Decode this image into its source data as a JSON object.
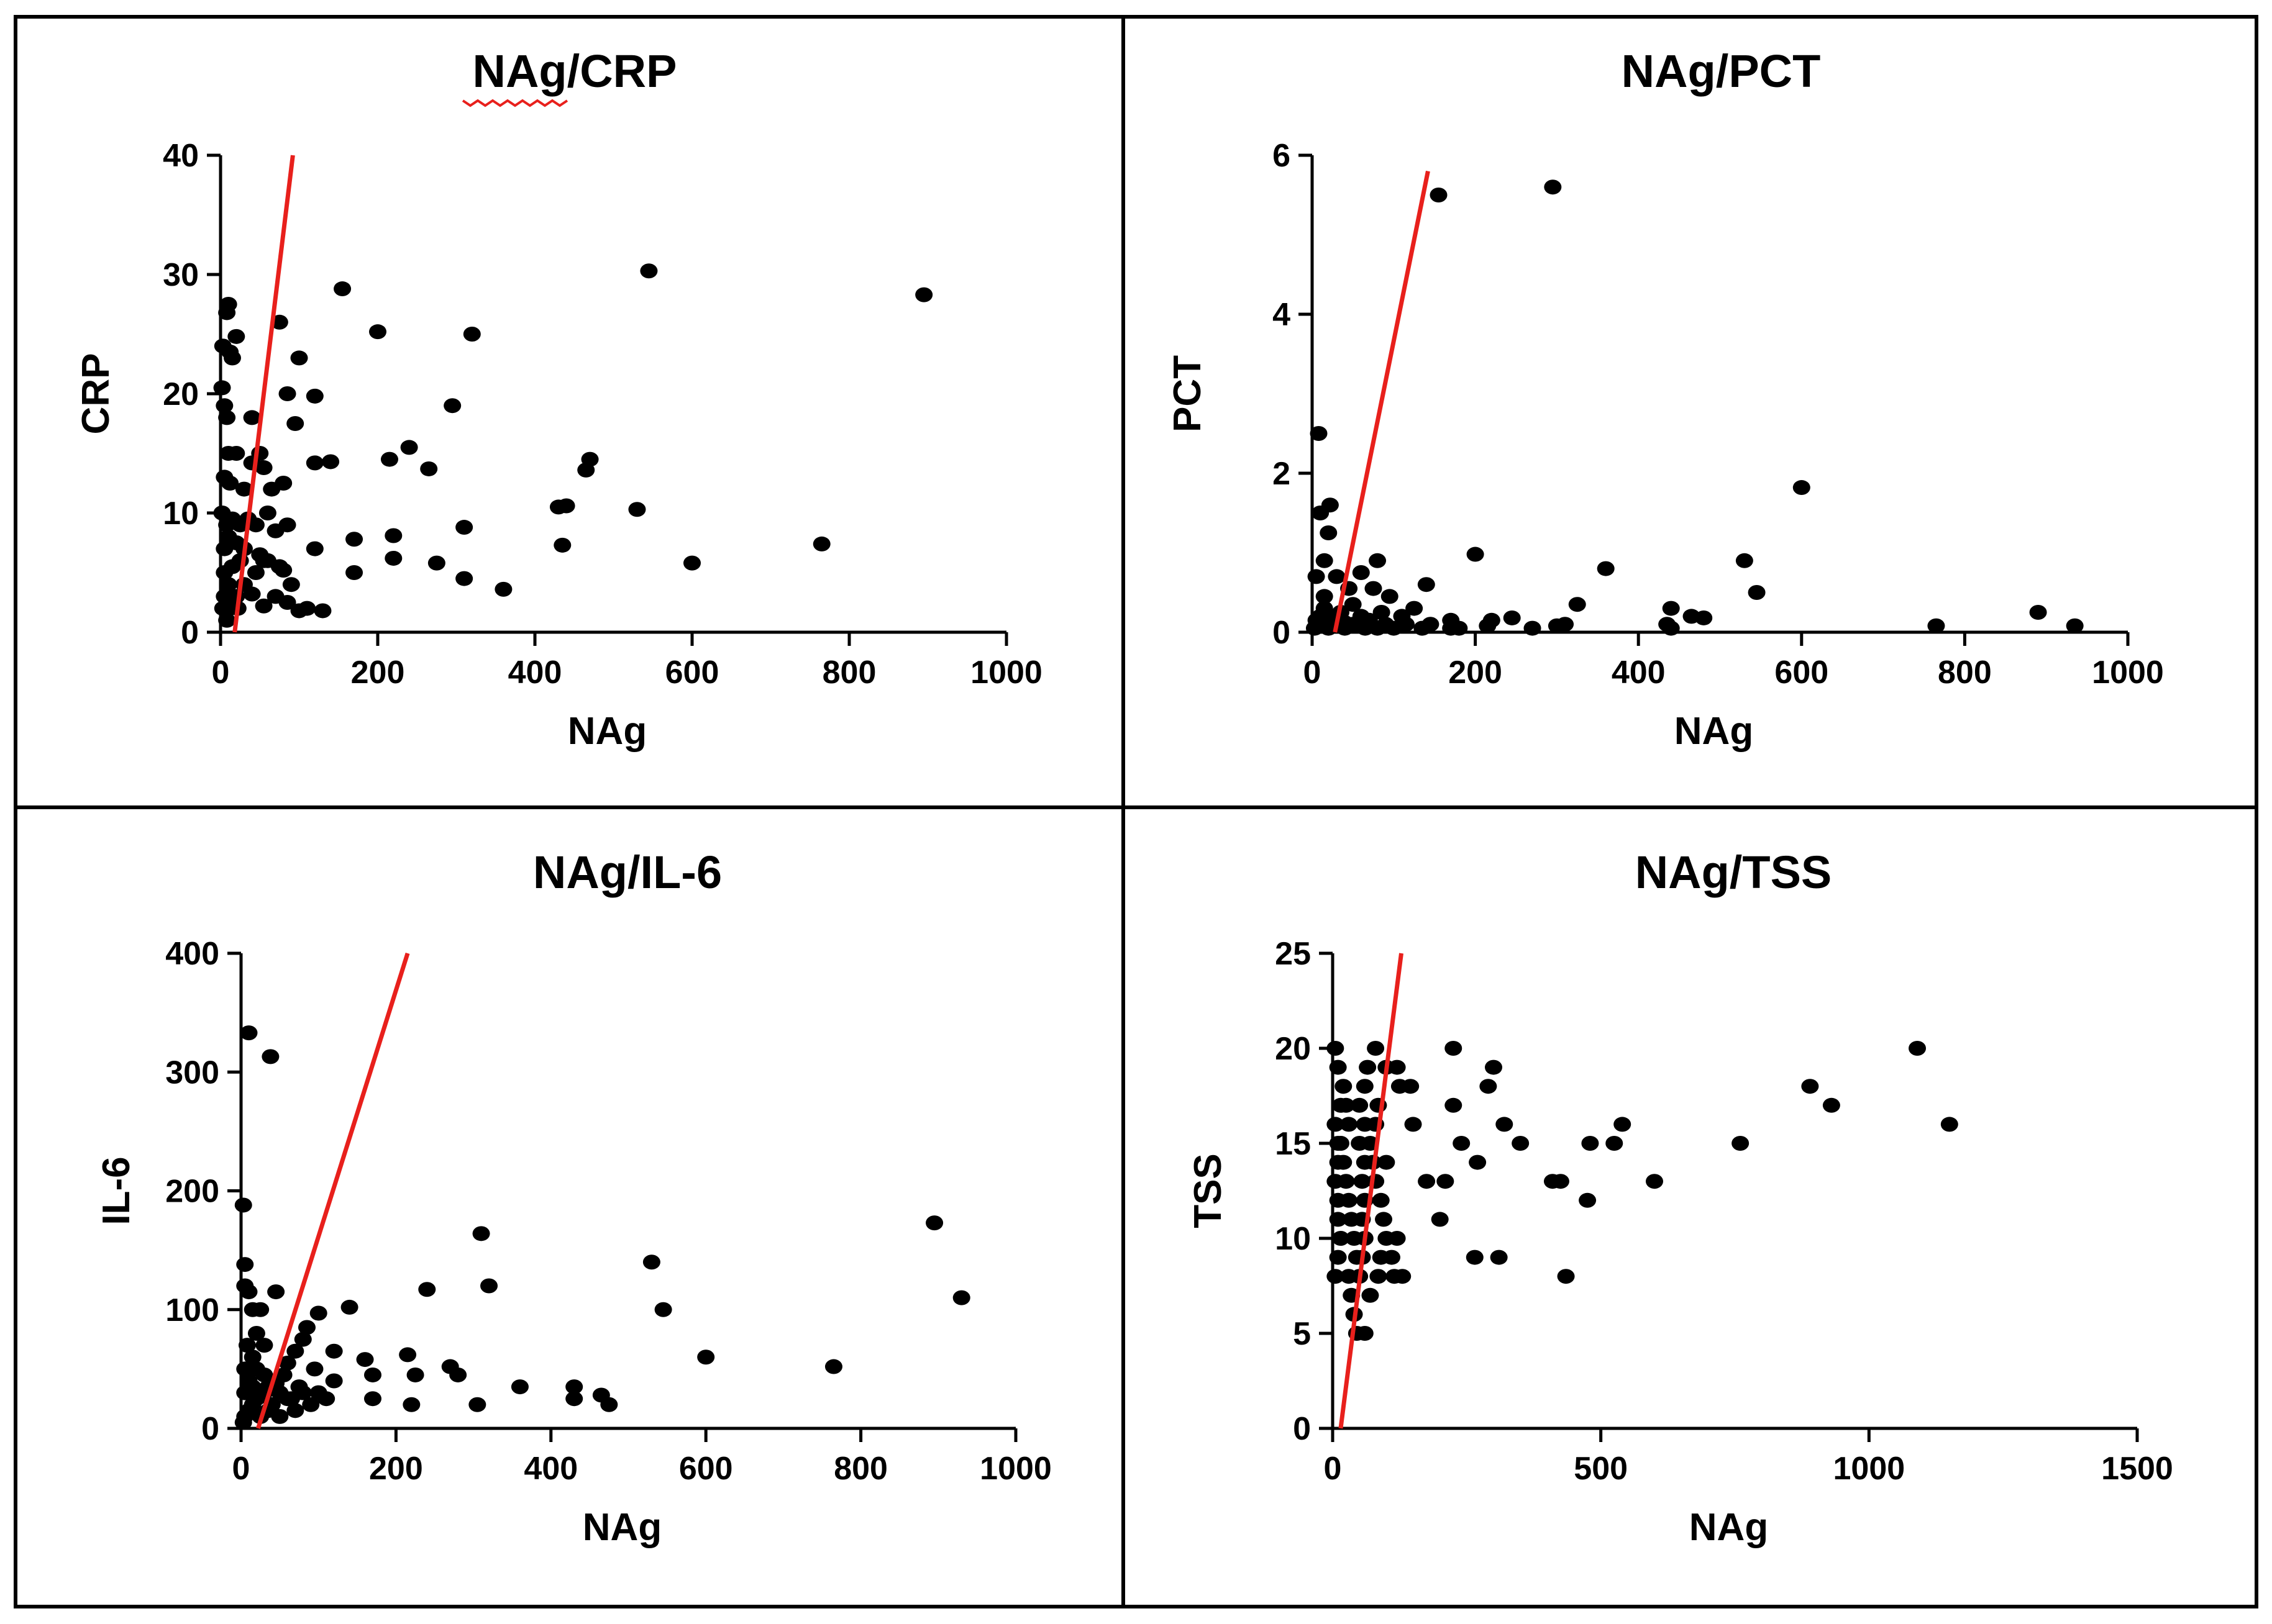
{
  "figure": {
    "panels": [
      {
        "id": "crp",
        "title": "NAg/CRP"
      },
      {
        "id": "pct",
        "title": "NAg/PCT"
      },
      {
        "id": "il6",
        "title": "NAg/IL-6"
      },
      {
        "id": "tss",
        "title": "NAg/TSS"
      }
    ]
  },
  "chart_data": [
    {
      "id": "crp",
      "type": "scatter",
      "title": "NAg/CRP",
      "xlabel": "NAg",
      "ylabel": "CRP",
      "xlim": [
        0,
        1000
      ],
      "ylim": [
        0,
        40
      ],
      "xticks": [
        0,
        200,
        400,
        600,
        800,
        1000
      ],
      "yticks": [
        0,
        10,
        20,
        30,
        40
      ],
      "marker_color": "#000000",
      "line_color": "#e8201c",
      "regression_line": [
        [
          18,
          0
        ],
        [
          92,
          40
        ]
      ],
      "points": [
        [
          10,
          27.5
        ],
        [
          8,
          26.8
        ],
        [
          3,
          24
        ],
        [
          12,
          23.5
        ],
        [
          20,
          24.8
        ],
        [
          15,
          23
        ],
        [
          2,
          20.5
        ],
        [
          5,
          19
        ],
        [
          8,
          18
        ],
        [
          40,
          18
        ],
        [
          75,
          26
        ],
        [
          100,
          23
        ],
        [
          85,
          20
        ],
        [
          120,
          19.8
        ],
        [
          95,
          17.5
        ],
        [
          155,
          28.8
        ],
        [
          200,
          25.2
        ],
        [
          320,
          25
        ],
        [
          295,
          19
        ],
        [
          545,
          30.3
        ],
        [
          895,
          28.3
        ],
        [
          10,
          15
        ],
        [
          20,
          15
        ],
        [
          40,
          14.2
        ],
        [
          50,
          15
        ],
        [
          55,
          13.8
        ],
        [
          65,
          12
        ],
        [
          80,
          12.5
        ],
        [
          5,
          13
        ],
        [
          12,
          12.5
        ],
        [
          30,
          12
        ],
        [
          120,
          14.2
        ],
        [
          140,
          14.3
        ],
        [
          215,
          14.5
        ],
        [
          240,
          15.5
        ],
        [
          265,
          13.7
        ],
        [
          470,
          14.5
        ],
        [
          465,
          13.6
        ],
        [
          2,
          10
        ],
        [
          8,
          9
        ],
        [
          15,
          9.5
        ],
        [
          25,
          9
        ],
        [
          35,
          9.5
        ],
        [
          45,
          9
        ],
        [
          60,
          10
        ],
        [
          70,
          8.5
        ],
        [
          85,
          9
        ],
        [
          430,
          10.5
        ],
        [
          440,
          10.6
        ],
        [
          530,
          10.3
        ],
        [
          310,
          8.8
        ],
        [
          5,
          7
        ],
        [
          10,
          8
        ],
        [
          20,
          7.5
        ],
        [
          30,
          7
        ],
        [
          50,
          6.5
        ],
        [
          60,
          6
        ],
        [
          75,
          5.5
        ],
        [
          120,
          7
        ],
        [
          170,
          7.8
        ],
        [
          220,
          8.1
        ],
        [
          435,
          7.3
        ],
        [
          765,
          7.4
        ],
        [
          5,
          5
        ],
        [
          15,
          5.5
        ],
        [
          25,
          6
        ],
        [
          45,
          5
        ],
        [
          55,
          6
        ],
        [
          80,
          5.2
        ],
        [
          170,
          5
        ],
        [
          220,
          6.2
        ],
        [
          275,
          5.8
        ],
        [
          310,
          4.5
        ],
        [
          600,
          5.8
        ],
        [
          5,
          3
        ],
        [
          10,
          4
        ],
        [
          20,
          3
        ],
        [
          30,
          4
        ],
        [
          40,
          3.2
        ],
        [
          55,
          2.2
        ],
        [
          70,
          3
        ],
        [
          85,
          2.5
        ],
        [
          100,
          1.8
        ],
        [
          110,
          2
        ],
        [
          130,
          1.8
        ],
        [
          90,
          4
        ],
        [
          360,
          3.6
        ],
        [
          3,
          2
        ],
        [
          12,
          2
        ],
        [
          22,
          2
        ],
        [
          8,
          1
        ]
      ]
    },
    {
      "id": "pct",
      "type": "scatter",
      "title": "NAg/PCT",
      "xlabel": "NAg",
      "ylabel": "PCT",
      "xlim": [
        0,
        1000
      ],
      "ylim": [
        0,
        6
      ],
      "xticks": [
        0,
        200,
        400,
        600,
        800,
        1000
      ],
      "yticks": [
        0,
        2,
        4,
        6
      ],
      "marker_color": "#000000",
      "line_color": "#e8201c",
      "regression_line": [
        [
          28,
          0
        ],
        [
          142,
          5.8
        ]
      ],
      "points": [
        [
          155,
          5.5
        ],
        [
          295,
          5.6
        ],
        [
          8,
          2.5
        ],
        [
          22,
          1.6
        ],
        [
          10,
          1.5
        ],
        [
          20,
          1.25
        ],
        [
          15,
          0.9
        ],
        [
          60,
          0.75
        ],
        [
          80,
          0.9
        ],
        [
          5,
          0.7
        ],
        [
          30,
          0.7
        ],
        [
          45,
          0.55
        ],
        [
          75,
          0.55
        ],
        [
          95,
          0.45
        ],
        [
          140,
          0.6
        ],
        [
          200,
          0.98
        ],
        [
          360,
          0.8
        ],
        [
          600,
          1.82
        ],
        [
          530,
          0.9
        ],
        [
          545,
          0.5
        ],
        [
          890,
          0.25
        ],
        [
          935,
          0.08
        ],
        [
          765,
          0.08
        ],
        [
          440,
          0.3
        ],
        [
          435,
          0.1
        ],
        [
          440,
          0.05
        ],
        [
          465,
          0.2
        ],
        [
          480,
          0.18
        ],
        [
          325,
          0.35
        ],
        [
          310,
          0.1
        ],
        [
          300,
          0.08
        ],
        [
          270,
          0.05
        ],
        [
          245,
          0.18
        ],
        [
          220,
          0.15
        ],
        [
          215,
          0.08
        ],
        [
          170,
          0.15
        ],
        [
          170,
          0.05
        ],
        [
          125,
          0.3
        ],
        [
          110,
          0.2
        ],
        [
          115,
          0.1
        ],
        [
          100,
          0.05
        ],
        [
          90,
          0.1
        ],
        [
          70,
          0.15
        ],
        [
          60,
          0.2
        ],
        [
          50,
          0.35
        ],
        [
          40,
          0.05
        ],
        [
          35,
          0.25
        ],
        [
          30,
          0.2
        ],
        [
          25,
          0.1
        ],
        [
          20,
          0.05
        ],
        [
          15,
          0.3
        ],
        [
          10,
          0.2
        ],
        [
          5,
          0.15
        ],
        [
          3,
          0.05
        ],
        [
          55,
          0.08
        ],
        [
          65,
          0.05
        ],
        [
          80,
          0.05
        ],
        [
          135,
          0.05
        ],
        [
          145,
          0.1
        ],
        [
          180,
          0.05
        ],
        [
          15,
          0.45
        ],
        [
          50,
          0.1
        ],
        [
          85,
          0.25
        ],
        [
          40,
          0.12
        ]
      ]
    },
    {
      "id": "il6",
      "type": "scatter",
      "title": "NAg/IL-6",
      "xlabel": "NAg",
      "ylabel": "IL-6",
      "xlim": [
        0,
        1000
      ],
      "ylim": [
        0,
        400
      ],
      "xticks": [
        0,
        200,
        400,
        600,
        800,
        1000
      ],
      "yticks": [
        0,
        100,
        200,
        300,
        400
      ],
      "marker_color": "#000000",
      "line_color": "#e8201c",
      "regression_line": [
        [
          22,
          0
        ],
        [
          215,
          400
        ]
      ],
      "points": [
        [
          10,
          333
        ],
        [
          38,
          313
        ],
        [
          3,
          188
        ],
        [
          5,
          138
        ],
        [
          5,
          120
        ],
        [
          10,
          115
        ],
        [
          15,
          100
        ],
        [
          25,
          100
        ],
        [
          45,
          115
        ],
        [
          310,
          164
        ],
        [
          895,
          173
        ],
        [
          930,
          110
        ],
        [
          530,
          140
        ],
        [
          545,
          100
        ],
        [
          320,
          120
        ],
        [
          240,
          117
        ],
        [
          140,
          102
        ],
        [
          100,
          97
        ],
        [
          85,
          85
        ],
        [
          80,
          75
        ],
        [
          70,
          65
        ],
        [
          60,
          55
        ],
        [
          55,
          45
        ],
        [
          45,
          38
        ],
        [
          35,
          35
        ],
        [
          30,
          30
        ],
        [
          20,
          25
        ],
        [
          15,
          20
        ],
        [
          10,
          15
        ],
        [
          5,
          10
        ],
        [
          3,
          5
        ],
        [
          5,
          50
        ],
        [
          8,
          70
        ],
        [
          15,
          60
        ],
        [
          20,
          50
        ],
        [
          30,
          45
        ],
        [
          40,
          40
        ],
        [
          50,
          30
        ],
        [
          65,
          25
        ],
        [
          80,
          30
        ],
        [
          90,
          20
        ],
        [
          100,
          30
        ],
        [
          120,
          40
        ],
        [
          120,
          65
        ],
        [
          160,
          58
        ],
        [
          170,
          45
        ],
        [
          215,
          62
        ],
        [
          270,
          52
        ],
        [
          280,
          45
        ],
        [
          225,
          45
        ],
        [
          170,
          25
        ],
        [
          220,
          20
        ],
        [
          305,
          20
        ],
        [
          360,
          35
        ],
        [
          430,
          35
        ],
        [
          430,
          25
        ],
        [
          465,
          28
        ],
        [
          475,
          20
        ],
        [
          600,
          60
        ],
        [
          765,
          52
        ],
        [
          95,
          50
        ],
        [
          110,
          25
        ],
        [
          75,
          35
        ],
        [
          60,
          25
        ],
        [
          40,
          20
        ],
        [
          35,
          15
        ],
        [
          25,
          10
        ],
        [
          50,
          10
        ],
        [
          70,
          15
        ],
        [
          5,
          30
        ],
        [
          10,
          40
        ],
        [
          15,
          35
        ],
        [
          20,
          80
        ],
        [
          30,
          70
        ]
      ]
    },
    {
      "id": "tss",
      "type": "scatter",
      "title": "NAg/TSS",
      "xlabel": "NAg",
      "ylabel": "TSS",
      "xlim": [
        0,
        1500
      ],
      "ylim": [
        0,
        25
      ],
      "xticks": [
        0,
        500,
        1000,
        1500
      ],
      "yticks": [
        0,
        5,
        10,
        15,
        20,
        25
      ],
      "marker_color": "#000000",
      "line_color": "#e8201c",
      "regression_line": [
        [
          15,
          0
        ],
        [
          128,
          25
        ]
      ],
      "points": [
        [
          5,
          20
        ],
        [
          10,
          19
        ],
        [
          20,
          18
        ],
        [
          25,
          17
        ],
        [
          30,
          16
        ],
        [
          15,
          15
        ],
        [
          20,
          14
        ],
        [
          25,
          13
        ],
        [
          30,
          12
        ],
        [
          35,
          11
        ],
        [
          40,
          10
        ],
        [
          45,
          9
        ],
        [
          30,
          8
        ],
        [
          35,
          7
        ],
        [
          40,
          6
        ],
        [
          45,
          5
        ],
        [
          60,
          5
        ],
        [
          50,
          17
        ],
        [
          60,
          16
        ],
        [
          70,
          15
        ],
        [
          75,
          14
        ],
        [
          80,
          13
        ],
        [
          90,
          12
        ],
        [
          95,
          11
        ],
        [
          100,
          10
        ],
        [
          110,
          9
        ],
        [
          115,
          8
        ],
        [
          130,
          8
        ],
        [
          120,
          10
        ],
        [
          80,
          20
        ],
        [
          100,
          19
        ],
        [
          120,
          19
        ],
        [
          125,
          18
        ],
        [
          145,
          18
        ],
        [
          150,
          16
        ],
        [
          175,
          13
        ],
        [
          200,
          11
        ],
        [
          210,
          13
        ],
        [
          225,
          20
        ],
        [
          225,
          17
        ],
        [
          240,
          15
        ],
        [
          265,
          9
        ],
        [
          270,
          14
        ],
        [
          290,
          18
        ],
        [
          300,
          19
        ],
        [
          310,
          9
        ],
        [
          320,
          16
        ],
        [
          350,
          15
        ],
        [
          410,
          13
        ],
        [
          425,
          13
        ],
        [
          435,
          8
        ],
        [
          475,
          12
        ],
        [
          480,
          15
        ],
        [
          525,
          15
        ],
        [
          540,
          16
        ],
        [
          600,
          13
        ],
        [
          760,
          15
        ],
        [
          890,
          18
        ],
        [
          930,
          17
        ],
        [
          1090,
          20
        ],
        [
          1150,
          16
        ],
        [
          5,
          8
        ],
        [
          10,
          9
        ],
        [
          15,
          10
        ],
        [
          10,
          11
        ],
        [
          10,
          12
        ],
        [
          5,
          13
        ],
        [
          10,
          14
        ],
        [
          10,
          15
        ],
        [
          5,
          16
        ],
        [
          15,
          17
        ],
        [
          50,
          8
        ],
        [
          55,
          9
        ],
        [
          60,
          10
        ],
        [
          55,
          11
        ],
        [
          60,
          12
        ],
        [
          55,
          13
        ],
        [
          60,
          14
        ],
        [
          50,
          15
        ],
        [
          60,
          18
        ],
        [
          65,
          19
        ],
        [
          70,
          7
        ],
        [
          85,
          8
        ],
        [
          90,
          9
        ],
        [
          100,
          14
        ],
        [
          80,
          16
        ],
        [
          85,
          17
        ]
      ]
    }
  ]
}
